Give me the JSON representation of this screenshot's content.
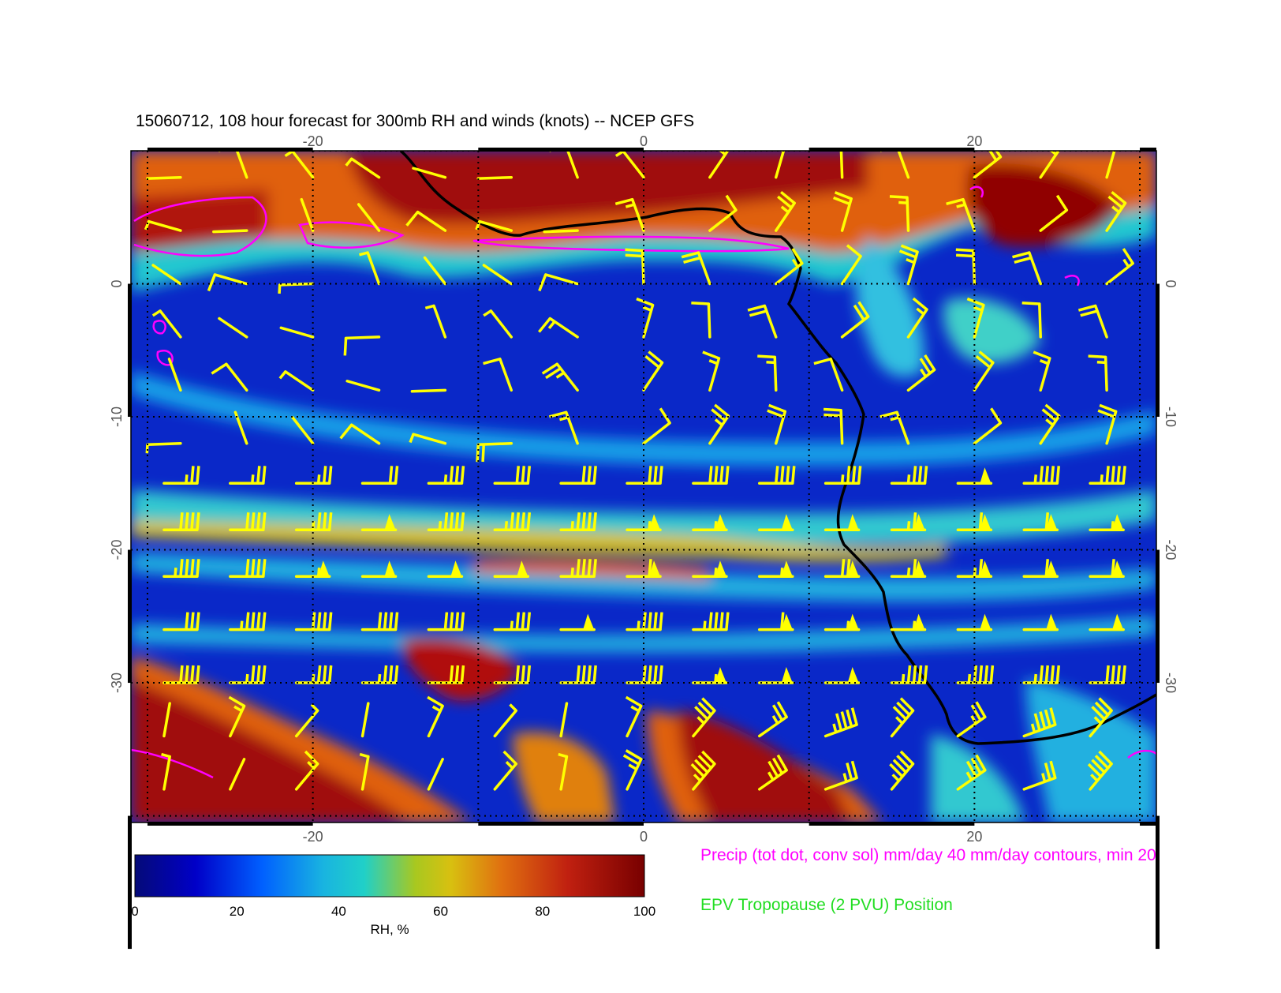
{
  "title": "15060712, 108 hour forecast for 300mb RH and winds (knots) -- NCEP GFS",
  "axes": {
    "x_ticks": [
      "-20",
      "0",
      "20"
    ],
    "x_values": [
      -20,
      0,
      20
    ],
    "y_ticks": [
      "0",
      "-10",
      "-20",
      "-30"
    ],
    "y_values": [
      0,
      -10,
      -20,
      -30
    ],
    "lon_range": [
      -31,
      31
    ],
    "lat_range": [
      10,
      -40.5
    ]
  },
  "colorbar": {
    "label": "RH, %",
    "ticks": [
      "0",
      "20",
      "40",
      "60",
      "80",
      "100"
    ],
    "tick_values": [
      0,
      20,
      40,
      60,
      80,
      100
    ],
    "range": [
      0,
      100
    ]
  },
  "legend": {
    "precip": "Precip (tot dot, conv sol) mm/day 40 mm/day contours, min 20",
    "epv": "EPV Tropopause (2 PVU) Position"
  },
  "colors": {
    "barbs": "#ffff00",
    "precip": "#ff00ff",
    "epv_legend": "#22dd22",
    "coastline": "#000000"
  },
  "map_data": {
    "field": "300mb relative humidity",
    "units": "%",
    "wind_units": "knots",
    "barb_rows": [
      {
        "lat": -15,
        "speed": 35,
        "dir": "west"
      },
      {
        "lat": -18.5,
        "speed": 50,
        "dir": "west"
      },
      {
        "lat": -22,
        "speed": 55,
        "dir": "west"
      },
      {
        "lat": -26,
        "speed": 45,
        "dir": "west"
      },
      {
        "lat": -30,
        "speed": 40,
        "dir": "west"
      }
    ]
  }
}
